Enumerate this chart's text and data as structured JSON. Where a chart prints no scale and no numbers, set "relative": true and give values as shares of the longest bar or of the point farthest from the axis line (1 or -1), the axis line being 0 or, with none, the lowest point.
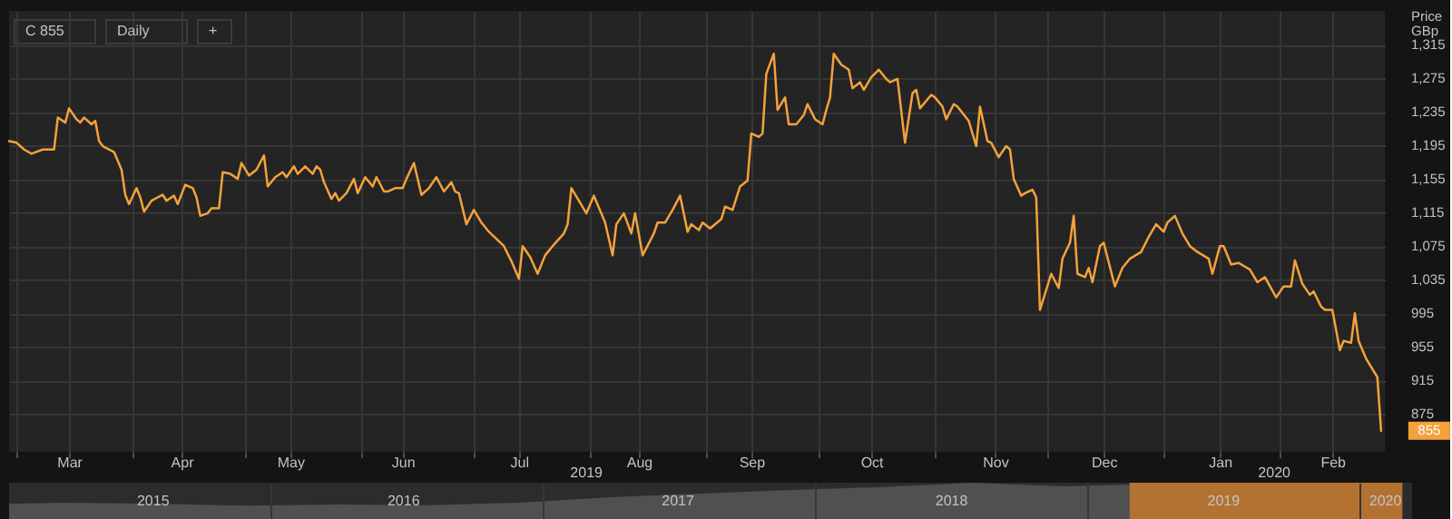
{
  "chart_data": [
    {
      "type": "line",
      "color": "#f4a23c",
      "ylabel": "Price GBp",
      "x": [
        "2019-02-27",
        "2019-03-01",
        "2019-03-03",
        "2019-03-05",
        "2019-03-08",
        "2019-03-11",
        "2019-03-12",
        "2019-03-14",
        "2019-03-15",
        "2019-03-17",
        "2019-03-18",
        "2019-03-19",
        "2019-03-21",
        "2019-03-22",
        "2019-03-23",
        "2019-03-24",
        "2019-03-27",
        "2019-03-29",
        "2019-03-30",
        "2019-03-31",
        "2019-04-02",
        "2019-04-03",
        "2019-04-04",
        "2019-04-06",
        "2019-04-09",
        "2019-04-10",
        "2019-04-12",
        "2019-04-13",
        "2019-04-15",
        "2019-04-17",
        "2019-04-18",
        "2019-04-19",
        "2019-04-21",
        "2019-04-22",
        "2019-04-24",
        "2019-04-25",
        "2019-04-27",
        "2019-04-29",
        "2019-04-30",
        "2019-05-02",
        "2019-05-04",
        "2019-05-06",
        "2019-05-07",
        "2019-05-09",
        "2019-05-11",
        "2019-05-12",
        "2019-05-14",
        "2019-05-15",
        "2019-05-17",
        "2019-05-19",
        "2019-05-20",
        "2019-05-21",
        "2019-05-22",
        "2019-05-24",
        "2019-05-25",
        "2019-05-26",
        "2019-05-28",
        "2019-05-30",
        "2019-05-31",
        "2019-06-02",
        "2019-06-04",
        "2019-06-05",
        "2019-06-07",
        "2019-06-08",
        "2019-06-10",
        "2019-06-12",
        "2019-06-13",
        "2019-06-15",
        "2019-06-17",
        "2019-06-19",
        "2019-06-21",
        "2019-06-23",
        "2019-06-25",
        "2019-06-26",
        "2019-06-27",
        "2019-06-29",
        "2019-07-01",
        "2019-07-03",
        "2019-07-05",
        "2019-07-09",
        "2019-07-11",
        "2019-07-13",
        "2019-07-14",
        "2019-07-16",
        "2019-07-18",
        "2019-07-20",
        "2019-07-22",
        "2019-07-25",
        "2019-07-26",
        "2019-07-27",
        "2019-07-29",
        "2019-07-31",
        "2019-08-02",
        "2019-08-05",
        "2019-08-07",
        "2019-08-08",
        "2019-08-10",
        "2019-08-12",
        "2019-08-13",
        "2019-08-15",
        "2019-08-18",
        "2019-08-19",
        "2019-08-21",
        "2019-08-23",
        "2019-08-25",
        "2019-08-27",
        "2019-08-28",
        "2019-08-30",
        "2019-08-31",
        "2019-09-02",
        "2019-09-05",
        "2019-09-06",
        "2019-09-08",
        "2019-09-10",
        "2019-09-12",
        "2019-09-13",
        "2019-09-15",
        "2019-09-16",
        "2019-09-17",
        "2019-09-19",
        "2019-09-20",
        "2019-09-22",
        "2019-09-23",
        "2019-09-25",
        "2019-09-27",
        "2019-09-28",
        "2019-09-30",
        "2019-10-02",
        "2019-10-03",
        "2019-10-04",
        "2019-10-05",
        "2019-10-07",
        "2019-10-09",
        "2019-10-10",
        "2019-10-12",
        "2019-10-13",
        "2019-10-15",
        "2019-10-17",
        "2019-10-19",
        "2019-10-20",
        "2019-10-22",
        "2019-10-24",
        "2019-10-26",
        "2019-10-27",
        "2019-10-28",
        "2019-10-31",
        "2019-11-01",
        "2019-11-03",
        "2019-11-04",
        "2019-11-06",
        "2019-11-07",
        "2019-11-10",
        "2019-11-12",
        "2019-11-13",
        "2019-11-15",
        "2019-11-16",
        "2019-11-18",
        "2019-11-20",
        "2019-11-21",
        "2019-11-22",
        "2019-11-24",
        "2019-11-25",
        "2019-11-27",
        "2019-11-28",
        "2019-11-29",
        "2019-12-02",
        "2019-12-04",
        "2019-12-05",
        "2019-12-07",
        "2019-12-08",
        "2019-12-09",
        "2019-12-11",
        "2019-12-12",
        "2019-12-13",
        "2019-12-15",
        "2019-12-16",
        "2019-12-19",
        "2019-12-21",
        "2019-12-23",
        "2019-12-26",
        "2019-12-28",
        "2019-12-30",
        "2020-01-01",
        "2020-01-02",
        "2020-01-04",
        "2020-01-06",
        "2020-01-08",
        "2020-01-10",
        "2020-01-13",
        "2020-01-14",
        "2020-01-16",
        "2020-01-17",
        "2020-01-19",
        "2020-01-21",
        "2020-01-24",
        "2020-01-26",
        "2020-01-28",
        "2020-01-29",
        "2020-01-31",
        "2020-02-02",
        "2020-02-04",
        "2020-02-05",
        "2020-02-07",
        "2020-02-09",
        "2020-02-10",
        "2020-02-12",
        "2020-02-13",
        "2020-02-15",
        "2020-02-17",
        "2020-02-18",
        "2020-02-20",
        "2020-02-21",
        "2020-02-22",
        "2020-02-24",
        "2020-02-27",
        "2020-02-28"
      ],
      "values": [
        1200,
        1198,
        1190,
        1185,
        1190,
        1190,
        1228,
        1222,
        1239,
        1226,
        1222,
        1228,
        1220,
        1224,
        1200,
        1194,
        1187,
        1166,
        1136,
        1125,
        1144,
        1133,
        1116,
        1129,
        1136,
        1129,
        1135,
        1125,
        1148,
        1144,
        1133,
        1111,
        1114,
        1120,
        1120,
        1163,
        1161,
        1155,
        1174,
        1159,
        1166,
        1183,
        1146,
        1157,
        1163,
        1157,
        1170,
        1161,
        1170,
        1161,
        1170,
        1166,
        1151,
        1131,
        1138,
        1129,
        1138,
        1155,
        1138,
        1157,
        1146,
        1157,
        1140,
        1140,
        1144,
        1144,
        1155,
        1174,
        1136,
        1144,
        1157,
        1140,
        1151,
        1140,
        1138,
        1101,
        1118,
        1103,
        1092,
        1075,
        1057,
        1036,
        1075,
        1062,
        1042,
        1064,
        1075,
        1090,
        1101,
        1144,
        1129,
        1114,
        1135,
        1103,
        1064,
        1101,
        1114,
        1090,
        1114,
        1064,
        1090,
        1103,
        1103,
        1118,
        1135,
        1092,
        1101,
        1094,
        1103,
        1096,
        1107,
        1122,
        1118,
        1146,
        1153,
        1209,
        1205,
        1209,
        1280,
        1304,
        1237,
        1252,
        1220,
        1220,
        1231,
        1244,
        1226,
        1220,
        1237,
        1252,
        1304,
        1291,
        1285,
        1263,
        1270,
        1261,
        1276,
        1285,
        1274,
        1270,
        1274,
        1198,
        1257,
        1261,
        1239,
        1255,
        1252,
        1241,
        1226,
        1244,
        1241,
        1224,
        1194,
        1241,
        1200,
        1198,
        1181,
        1194,
        1190,
        1155,
        1135,
        1138,
        1142,
        1133,
        999,
        1042,
        1025,
        1060,
        1079,
        1111,
        1042,
        1038,
        1049,
        1032,
        1075,
        1079,
        1027,
        1049,
        1060,
        1068,
        1086,
        1101,
        1092,
        1103,
        1111,
        1090,
        1075,
        1068,
        1060,
        1042,
        1075,
        1075,
        1053,
        1055,
        1047,
        1032,
        1038,
        1030,
        1014,
        1027,
        1027,
        1058,
        1030,
        1017,
        1021,
        1003,
        999,
        999,
        951,
        962,
        960,
        995,
        962,
        941,
        919,
        855
      ],
      "xlim": [
        "2019-02-27",
        "2020-02-29"
      ],
      "ylim": [
        830,
        1355
      ],
      "xticks": [
        {
          "value": "2019-03-01",
          "label": null
        },
        {
          "value": "2019-03-15",
          "label": "Mar"
        },
        {
          "value": "2019-04-01",
          "label": null
        },
        {
          "value": "2019-04-14",
          "label": "Apr"
        },
        {
          "value": "2019-05-01",
          "label": null
        },
        {
          "value": "2019-05-13",
          "label": "May"
        },
        {
          "value": "2019-06-01",
          "label": null
        },
        {
          "value": "2019-06-12",
          "label": "Jun"
        },
        {
          "value": "2019-07-01",
          "label": null
        },
        {
          "value": "2019-07-13",
          "label": "Jul"
        },
        {
          "value": "2019-08-01",
          "label": null
        },
        {
          "value": "2019-08-14",
          "label": "Aug"
        },
        {
          "value": "2019-09-01",
          "label": null
        },
        {
          "value": "2019-09-13",
          "label": "Sep"
        },
        {
          "value": "2019-10-01",
          "label": null
        },
        {
          "value": "2019-10-15",
          "label": "Oct"
        },
        {
          "value": "2019-11-01",
          "label": null
        },
        {
          "value": "2019-11-17",
          "label": "Nov"
        },
        {
          "value": "2019-12-01",
          "label": null
        },
        {
          "value": "2019-12-16",
          "label": "Dec"
        },
        {
          "value": "2020-01-01",
          "label": null
        },
        {
          "value": "2020-01-16",
          "label": "Jan"
        },
        {
          "value": "2020-02-01",
          "label": null
        },
        {
          "value": "2020-02-15",
          "label": "Feb"
        }
      ],
      "yticks": [
        875,
        915,
        955,
        995,
        {
          "value": 1035,
          "label": "1,035"
        },
        {
          "value": 1075,
          "label": "1,075"
        },
        {
          "value": 1115,
          "label": "1,115"
        },
        {
          "value": 1155,
          "label": "1,155"
        },
        {
          "value": 1195,
          "label": "1,195"
        },
        {
          "value": 1235,
          "label": "1,235"
        },
        {
          "value": 1275,
          "label": "1,275"
        },
        {
          "value": 1315,
          "label": "1,315"
        }
      ],
      "grid": true,
      "annotations": [
        "C 855",
        "Daily",
        "+",
        "2019",
        "2020",
        {
          "text": "855",
          "x": "2020-02-28",
          "y": 855
        }
      ]
    },
    {
      "type": "area",
      "relative": true,
      "color": "#505050",
      "x": [
        "2015-01-16",
        "2015-04-01",
        "2015-08-01",
        "2015-12-01",
        "2016-04-01",
        "2016-08-01",
        "2016-12-01",
        "2017-04-01",
        "2017-08-01",
        "2017-12-01",
        "2018-04-01",
        "2018-08-01",
        "2018-12-01",
        "2019-02-27"
      ],
      "values": [
        0.42,
        0.45,
        0.42,
        0.37,
        0.4,
        0.38,
        0.45,
        0.6,
        0.7,
        0.8,
        0.88,
        1.0,
        0.9,
        0.95
      ],
      "xlim": [
        "2015-01-16",
        "2020-03-12"
      ],
      "xticks": [
        {
          "value": "2015-07-27",
          "label": "2015"
        },
        {
          "value": "2016-01-01",
          "label": null
        },
        {
          "value": "2016-06-27",
          "label": "2016"
        },
        {
          "value": "2017-01-01",
          "label": null
        },
        {
          "value": "2017-06-30",
          "label": "2017"
        },
        {
          "value": "2018-01-01",
          "label": null
        },
        {
          "value": "2018-07-02",
          "label": "2018"
        },
        {
          "value": "2019-01-01",
          "label": null
        },
        {
          "value": "2019-07-02",
          "label": "2019"
        },
        {
          "value": "2020-01-01",
          "label": null
        },
        {
          "value": "2020-02-04",
          "label": "2020"
        }
      ],
      "grid": "x",
      "bands": [
        {
          "axis": "x",
          "from": "2019-02-27",
          "to": "2020-02-28",
          "color": "#c27a33"
        }
      ]
    }
  ]
}
